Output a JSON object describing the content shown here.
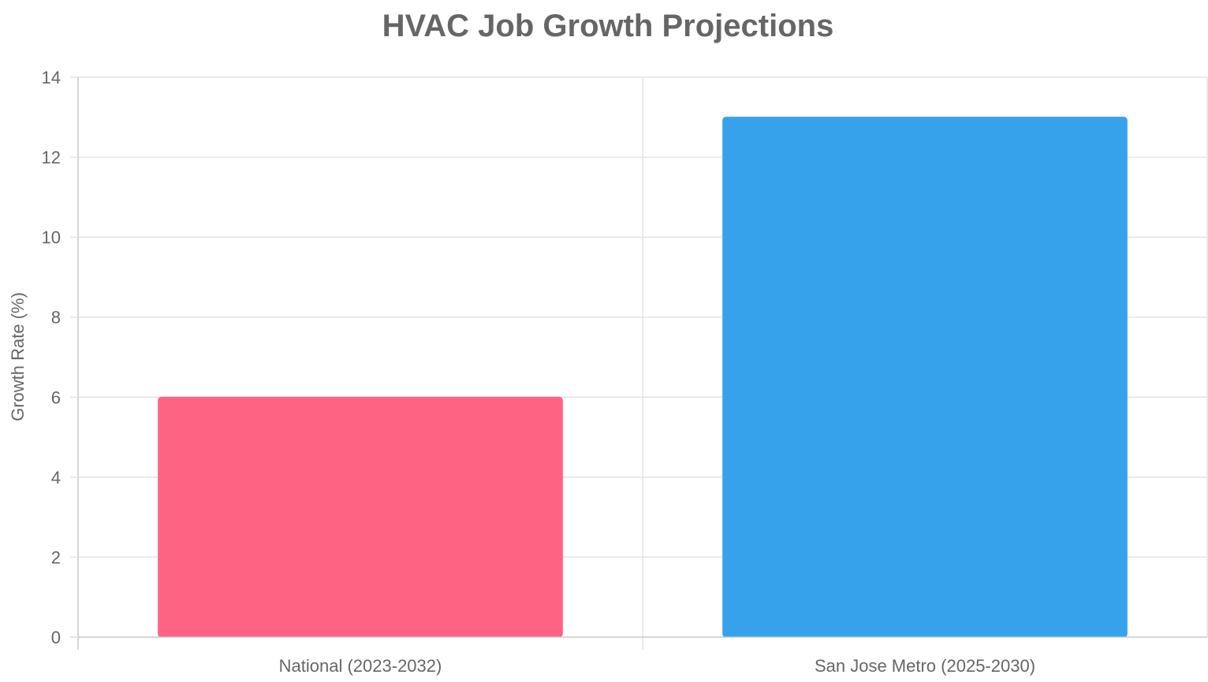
{
  "chart_data": {
    "type": "bar",
    "title": "HVAC Job Growth Projections",
    "xlabel": "",
    "ylabel": "Growth Rate (%)",
    "categories": [
      "National (2023-2032)",
      "San Jose Metro (2025-2030)"
    ],
    "values": [
      6,
      13
    ],
    "bar_colors": [
      "#ff6384",
      "#36a2eb"
    ],
    "ylim": [
      0,
      14
    ],
    "yticks": [
      0,
      2,
      4,
      6,
      8,
      10,
      12,
      14
    ],
    "grid": true,
    "legend": "none"
  }
}
